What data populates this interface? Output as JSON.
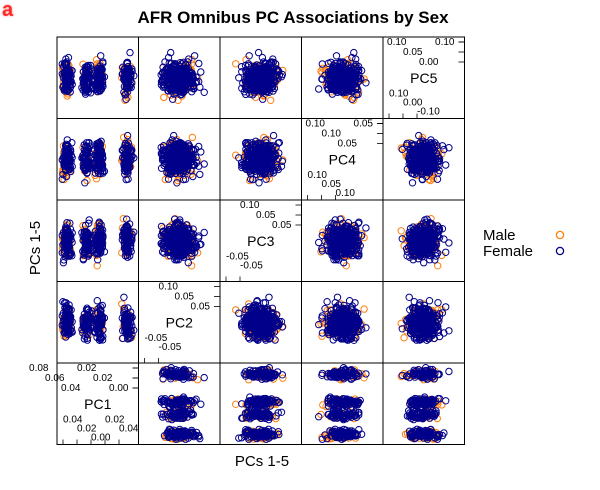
{
  "panel_label": "a",
  "chart_data": {
    "type": "scatter",
    "title": "AFR Omnibus PC Associations by Sex",
    "xlabel": "PCs 1-5",
    "ylabel": "PCs 1-5",
    "variables": [
      "PC1",
      "PC2",
      "PC3",
      "PC4",
      "PC5"
    ],
    "legend": {
      "position": "right",
      "entries": [
        {
          "name": "Male",
          "color": "#ff7f0e"
        },
        {
          "name": "Female",
          "color": "#00008b"
        }
      ]
    },
    "diagonal_ticks": {
      "PC1": {
        "top": [
          "0.08",
          "0.06",
          "0.04",
          "0.02",
          "0.02",
          "0.00"
        ],
        "bottom": [
          "0.04",
          "0.02",
          "0.00",
          "0.02",
          "0.04"
        ]
      },
      "PC2": {
        "top": [
          "0.10",
          "0.05",
          "0.05"
        ],
        "bottom": [
          "-0.05",
          "-0.05"
        ]
      },
      "PC3": {
        "top": [
          "0.10",
          "0.05",
          "0.05"
        ],
        "bottom": [
          "-0.05",
          "-0.05"
        ]
      },
      "PC4": {
        "top": [
          "0.10",
          "0.10",
          "0.05",
          "0.05"
        ],
        "bottom": [
          "0.10",
          "0.05",
          "0.10"
        ]
      },
      "PC5": {
        "top": [
          "0.10",
          "0.05",
          "0.00",
          "0.10"
        ],
        "bottom": [
          "0.10",
          "0.00",
          "-0.10"
        ]
      }
    },
    "grid": false,
    "series": [
      {
        "name": "Male",
        "color": "#ff7f0e"
      },
      {
        "name": "Female",
        "color": "#00008b"
      }
    ]
  }
}
